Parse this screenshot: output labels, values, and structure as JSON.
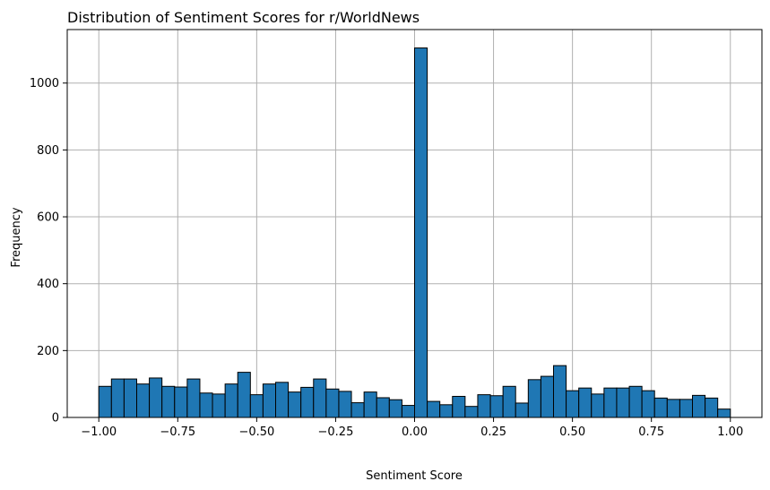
{
  "chart_data": {
    "type": "bar",
    "title": "Distribution of Sentiment Scores for r/WorldNews",
    "xlabel": "Sentiment Score",
    "ylabel": "Frequency",
    "x_ticks": [
      "−1.00",
      "−0.75",
      "−0.50",
      "−0.25",
      "0.00",
      "0.25",
      "0.50",
      "0.75",
      "1.00"
    ],
    "x_tick_values": [
      -1.0,
      -0.75,
      -0.5,
      -0.25,
      0.0,
      0.25,
      0.5,
      0.75,
      1.0
    ],
    "y_ticks": [
      "0",
      "200",
      "400",
      "600",
      "800",
      "1000"
    ],
    "y_tick_values": [
      0,
      200,
      400,
      600,
      800,
      1000
    ],
    "xlim": [
      -1.1,
      1.1
    ],
    "ylim": [
      0,
      1160
    ],
    "grid": true,
    "bin_range": [
      -1.0,
      1.0
    ],
    "bin_count": 50,
    "values": [
      93,
      115,
      115,
      100,
      118,
      93,
      91,
      115,
      73,
      70,
      100,
      135,
      68,
      100,
      105,
      76,
      90,
      115,
      85,
      78,
      44,
      76,
      59,
      53,
      36,
      1105,
      48,
      38,
      63,
      33,
      68,
      65,
      93,
      43,
      113,
      123,
      155,
      80,
      88,
      70,
      88,
      88,
      93,
      80,
      58,
      54,
      54,
      66,
      58,
      25
    ],
    "bar_color": "#1f77b4",
    "edge_color": "#000000",
    "grid_color": "#b0b0b0"
  }
}
